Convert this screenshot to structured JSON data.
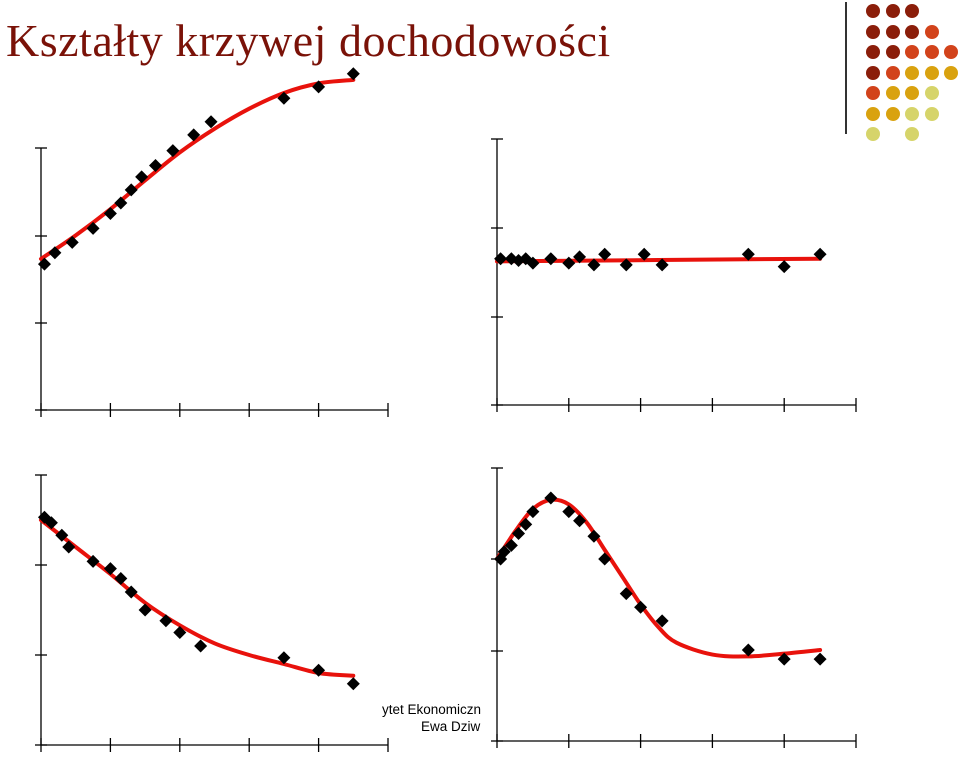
{
  "page": {
    "title": "Kształty krzywej dochodowości"
  },
  "footer": {
    "line1": "ytet Ekonomiczn",
    "line2": "Ewa Dziw"
  },
  "colors": {
    "title": "#7a1208",
    "curve": "#e8120c",
    "marker": "#000000",
    "axis": "#000000",
    "decor_palette": [
      "#8b1e0a",
      "#d2431b",
      "#d9a20f",
      "#d6d46a"
    ]
  },
  "decor": {
    "rows": [
      [
        "#8b1e0a",
        "#8b1e0a",
        "#8b1e0a",
        null,
        null
      ],
      [
        "#8b1e0a",
        "#8b1e0a",
        "#8b1e0a",
        "#d2431b",
        null
      ],
      [
        "#8b1e0a",
        "#8b1e0a",
        "#d2431b",
        "#d2431b",
        "#d2431b"
      ],
      [
        "#8b1e0a",
        "#d2431b",
        "#d9a20f",
        "#d9a20f",
        "#d9a20f"
      ],
      [
        "#d2431b",
        "#d9a20f",
        "#d9a20f",
        "#d6d46a",
        null
      ],
      [
        "#d9a20f",
        "#d9a20f",
        "#d6d46a",
        "#d6d46a",
        null
      ],
      [
        "#d6d46a",
        null,
        "#d6d46a",
        null,
        null
      ]
    ]
  },
  "chart_data": [
    {
      "type": "scatter",
      "shape": "rising",
      "x_ticks": 5,
      "y_ticks": 3,
      "points": [
        [
          0.1,
          1.67
        ],
        [
          0.4,
          1.8
        ],
        [
          0.9,
          1.92
        ],
        [
          1.5,
          2.08
        ],
        [
          2.0,
          2.25
        ],
        [
          2.3,
          2.37
        ],
        [
          2.6,
          2.52
        ],
        [
          2.9,
          2.67
        ],
        [
          3.3,
          2.8
        ],
        [
          3.8,
          2.97
        ],
        [
          4.4,
          3.15
        ],
        [
          4.9,
          3.3
        ],
        [
          7.0,
          3.57
        ],
        [
          8.0,
          3.7
        ],
        [
          9.0,
          3.85
        ]
      ],
      "curve": [
        [
          0,
          1.73
        ],
        [
          1,
          2.0
        ],
        [
          2,
          2.3
        ],
        [
          3,
          2.63
        ],
        [
          4,
          2.95
        ],
        [
          5,
          3.22
        ],
        [
          6,
          3.45
        ],
        [
          7,
          3.63
        ],
        [
          8,
          3.74
        ],
        [
          9,
          3.78
        ]
      ]
    },
    {
      "type": "scatter",
      "shape": "flat",
      "x_ticks": 5,
      "y_ticks": 3,
      "points": [
        [
          0.1,
          1.65
        ],
        [
          0.4,
          1.65
        ],
        [
          0.6,
          1.63
        ],
        [
          0.8,
          1.65
        ],
        [
          1.0,
          1.6
        ],
        [
          1.5,
          1.65
        ],
        [
          2.0,
          1.6
        ],
        [
          2.3,
          1.67
        ],
        [
          2.7,
          1.58
        ],
        [
          3.0,
          1.7
        ],
        [
          3.6,
          1.58
        ],
        [
          4.1,
          1.7
        ],
        [
          4.6,
          1.58
        ],
        [
          7.0,
          1.7
        ],
        [
          8.0,
          1.56
        ],
        [
          9.0,
          1.7
        ]
      ],
      "curve": [
        [
          0,
          1.62
        ],
        [
          9,
          1.65
        ]
      ]
    },
    {
      "type": "scatter",
      "shape": "falling",
      "x_ticks": 5,
      "y_ticks": 3,
      "points": [
        [
          0.1,
          2.53
        ],
        [
          0.3,
          2.47
        ],
        [
          0.6,
          2.33
        ],
        [
          0.8,
          2.2
        ],
        [
          1.5,
          2.04
        ],
        [
          2.0,
          1.96
        ],
        [
          2.3,
          1.85
        ],
        [
          2.6,
          1.7
        ],
        [
          3.0,
          1.5
        ],
        [
          3.6,
          1.38
        ],
        [
          4.0,
          1.25
        ],
        [
          4.6,
          1.1
        ],
        [
          7.0,
          0.97
        ],
        [
          8.0,
          0.83
        ],
        [
          9.0,
          0.68
        ]
      ],
      "curve": [
        [
          0,
          2.5
        ],
        [
          1,
          2.2
        ],
        [
          2,
          1.9
        ],
        [
          3,
          1.58
        ],
        [
          4,
          1.33
        ],
        [
          5,
          1.13
        ],
        [
          6,
          1.0
        ],
        [
          7,
          0.9
        ],
        [
          8,
          0.8
        ],
        [
          9,
          0.77
        ]
      ]
    },
    {
      "type": "scatter",
      "shape": "humped",
      "x_ticks": 5,
      "y_ticks": 3,
      "points": [
        [
          0.1,
          2.0
        ],
        [
          0.2,
          2.08
        ],
        [
          0.4,
          2.15
        ],
        [
          0.6,
          2.28
        ],
        [
          0.8,
          2.38
        ],
        [
          1.0,
          2.52
        ],
        [
          1.5,
          2.67
        ],
        [
          2.0,
          2.52
        ],
        [
          2.3,
          2.42
        ],
        [
          2.7,
          2.25
        ],
        [
          3.0,
          2.0
        ],
        [
          3.6,
          1.62
        ],
        [
          4.0,
          1.47
        ],
        [
          4.6,
          1.32
        ],
        [
          7.0,
          1.0
        ],
        [
          8.0,
          0.9
        ],
        [
          9.0,
          0.9
        ]
      ],
      "curve": [
        [
          0,
          2.0
        ],
        [
          0.5,
          2.3
        ],
        [
          1.0,
          2.55
        ],
        [
          1.5,
          2.65
        ],
        [
          2.0,
          2.6
        ],
        [
          2.5,
          2.4
        ],
        [
          3.0,
          2.1
        ],
        [
          3.5,
          1.8
        ],
        [
          4.0,
          1.5
        ],
        [
          4.5,
          1.25
        ],
        [
          5.0,
          1.08
        ],
        [
          6.0,
          0.95
        ],
        [
          7.0,
          0.93
        ],
        [
          8.0,
          0.96
        ],
        [
          9.0,
          1.0
        ]
      ]
    }
  ]
}
